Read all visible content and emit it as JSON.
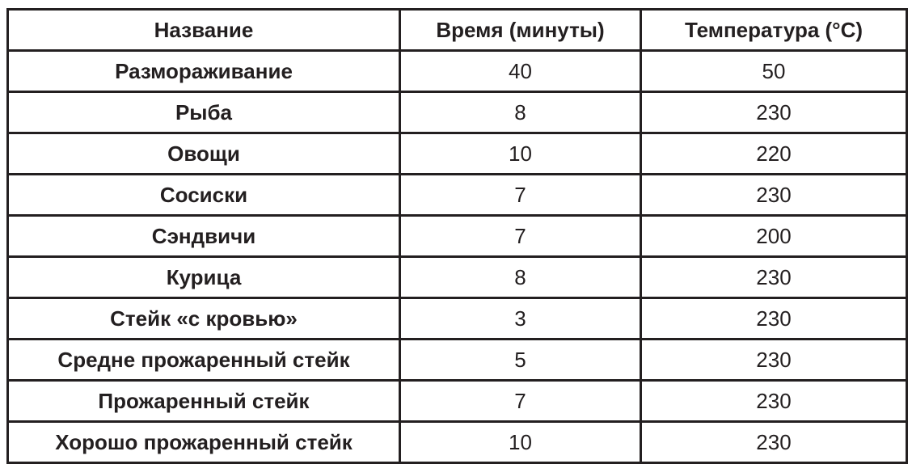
{
  "table": {
    "headers": [
      "Название",
      "Время (минуты)",
      "Температура (°C)"
    ],
    "rows": [
      {
        "name": "Размораживание",
        "time": "40",
        "temp": "50"
      },
      {
        "name": "Рыба",
        "time": "8",
        "temp": "230"
      },
      {
        "name": "Овощи",
        "time": "10",
        "temp": "220"
      },
      {
        "name": "Сосиски",
        "time": "7",
        "temp": "230"
      },
      {
        "name": "Сэндвичи",
        "time": "7",
        "temp": "200"
      },
      {
        "name": "Курица",
        "time": "8",
        "temp": "230"
      },
      {
        "name": "Стейк «с кровью»",
        "time": "3",
        "temp": "230"
      },
      {
        "name": "Средне прожаренный стейк",
        "time": "5",
        "temp": "230"
      },
      {
        "name": "Прожаренный стейк",
        "time": "7",
        "temp": "230"
      },
      {
        "name": "Хорошо прожаренный стейк",
        "time": "10",
        "temp": "230"
      }
    ]
  }
}
